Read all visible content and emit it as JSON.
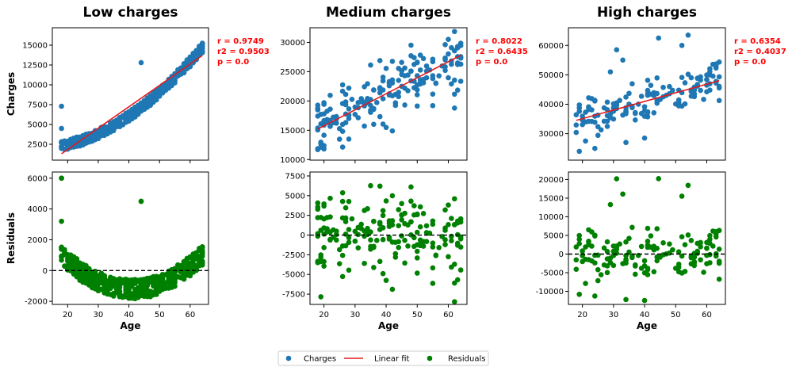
{
  "figure": {
    "colors": {
      "charges": "#1f77b4",
      "fit": "#e31a1c",
      "residuals": "#008000",
      "zero_line": "#000000"
    },
    "legend": {
      "position": "bottom-center",
      "items": [
        {
          "label": "Charges",
          "marker": "circle",
          "color": "#1f77b4"
        },
        {
          "label": "Linear fit",
          "marker": "line",
          "color": "#e31a1c"
        },
        {
          "label": "Residuals",
          "marker": "circle",
          "color": "#008000"
        }
      ]
    },
    "shared_xlabel": "Age",
    "ylabels": {
      "top": "Charges",
      "bottom": "Residuals"
    }
  },
  "chart_data": [
    {
      "type": "scatter",
      "panel": "charges",
      "column": 0,
      "title": "Low charges",
      "xlabel": "",
      "ylabel": "Charges",
      "xlim": [
        15,
        66
      ],
      "ylim": [
        500,
        17200
      ],
      "xticks": [
        20,
        30,
        40,
        50,
        60
      ],
      "yticks": [
        2500,
        5000,
        7500,
        10000,
        12500,
        15000
      ],
      "stats": [
        "r = 0.9749",
        "r2 = 0.9503",
        "p = 0.0"
      ],
      "fit": {
        "x": [
          18,
          64
        ],
        "y": [
          1300,
          13700
        ]
      },
      "noise": 650,
      "n": 520,
      "outliers": [
        [
          18,
          7300
        ],
        [
          18,
          4500
        ],
        [
          44,
          12800
        ]
      ]
    },
    {
      "type": "scatter",
      "panel": "charges",
      "column": 1,
      "title": "Medium charges",
      "xlabel": "",
      "ylabel": "",
      "xlim": [
        15.5,
        66
      ],
      "ylim": [
        9900,
        32500
      ],
      "xticks": [
        20,
        30,
        40,
        50,
        60
      ],
      "yticks": [
        10000,
        15000,
        20000,
        25000,
        30000
      ],
      "stats": [
        "r = 0.8022",
        "r2 = 0.6435",
        "p = 0.0"
      ],
      "fit": {
        "x": [
          18,
          64
        ],
        "y": [
          15200,
          27800
        ]
      },
      "noise": 2700,
      "n": 190,
      "outliers": []
    },
    {
      "type": "scatter",
      "panel": "charges",
      "column": 2,
      "title": "High charges",
      "xlabel": "",
      "ylabel": "",
      "xlim": [
        15.5,
        66
      ],
      "ylim": [
        21000,
        66000
      ],
      "xticks": [
        20,
        30,
        40,
        50,
        60
      ],
      "yticks": [
        30000,
        40000,
        50000,
        60000
      ],
      "stats": [
        "r = 0.6354",
        "r2 = 0.4037",
        "p = 0.0"
      ],
      "fit": {
        "x": [
          18,
          64
        ],
        "y": [
          34500,
          48000
        ]
      },
      "noise": 3200,
      "n": 140,
      "outliers": [
        [
          31,
          58500
        ],
        [
          33,
          55000
        ],
        [
          29,
          51000
        ],
        [
          44.5,
          62500
        ],
        [
          54,
          63500
        ],
        [
          52,
          60000
        ],
        [
          19,
          24000
        ],
        [
          21,
          27500
        ],
        [
          24,
          25000
        ],
        [
          34,
          27000
        ],
        [
          40,
          28500
        ]
      ]
    },
    {
      "type": "scatter",
      "panel": "residuals",
      "column": 0,
      "title": "",
      "xlabel": "Age",
      "ylabel": "Residuals",
      "xlim": [
        15,
        66
      ],
      "ylim": [
        -2200,
        6400
      ],
      "xticks": [
        20,
        30,
        40,
        50,
        60
      ],
      "yticks": [
        -2000,
        0,
        2000,
        4000,
        6000
      ],
      "outliers": [
        [
          18,
          6000
        ],
        [
          44,
          4500
        ]
      ]
    },
    {
      "type": "scatter",
      "panel": "residuals",
      "column": 1,
      "title": "",
      "xlabel": "Age",
      "ylabel": "",
      "xlim": [
        15.5,
        66
      ],
      "ylim": [
        -8800,
        8000
      ],
      "xticks": [
        20,
        30,
        40,
        50,
        60
      ],
      "yticks": [
        -7500,
        -5000,
        -2500,
        0,
        2500,
        5000,
        7500
      ],
      "outliers": []
    },
    {
      "type": "scatter",
      "panel": "residuals",
      "column": 2,
      "title": "",
      "xlabel": "Age",
      "ylabel": "",
      "xlim": [
        15.5,
        66
      ],
      "ylim": [
        -13500,
        22000
      ],
      "xticks": [
        20,
        30,
        40,
        50,
        60
      ],
      "yticks": [
        -10000,
        -5000,
        0,
        5000,
        10000,
        15000,
        20000
      ],
      "outliers": []
    }
  ]
}
